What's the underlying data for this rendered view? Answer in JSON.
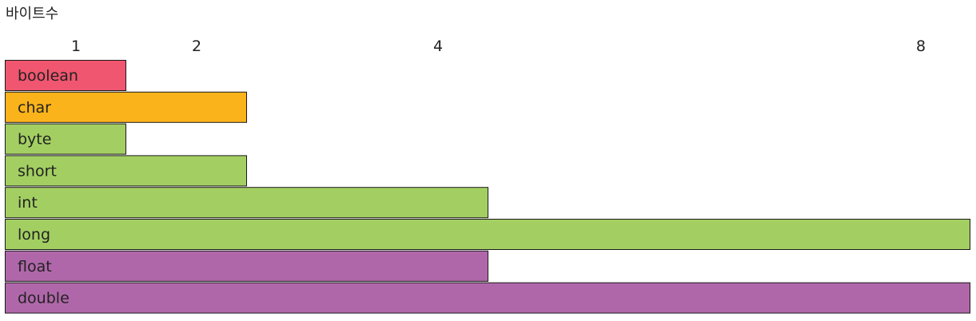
{
  "chart_data": {
    "type": "bar",
    "orientation": "horizontal",
    "axis_title": "바이트수",
    "ticks": [
      "1",
      "2",
      "4",
      "8"
    ],
    "xlim": [
      0,
      8
    ],
    "categories": [
      "boolean",
      "char",
      "byte",
      "short",
      "int",
      "long",
      "float",
      "double"
    ],
    "values": [
      1,
      2,
      1,
      2,
      4,
      8,
      4,
      8
    ],
    "colors": [
      "#f0566f",
      "#fbb31b",
      "#a3cf62",
      "#a3cf62",
      "#a3cf62",
      "#a3cf62",
      "#b067aa",
      "#b067aa"
    ],
    "grid": false,
    "legend": "none"
  }
}
